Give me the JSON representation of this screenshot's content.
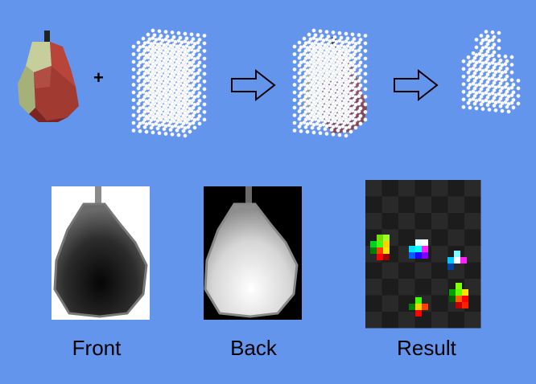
{
  "symbols": {
    "plus": "+"
  },
  "captions": {
    "front": "Front",
    "back": "Back",
    "result": "Result"
  },
  "colors": {
    "background": "#6495ED",
    "pear_red": "#a83a32",
    "pear_green": "#b9c78f",
    "voxel": "#ffffff",
    "arrow_fill": "#6495ED",
    "arrow_stroke": "#000000"
  },
  "icons": [
    "pear-model",
    "voxel-grid",
    "right-arrow",
    "voxelized-pear",
    "depth-map",
    "result-map"
  ]
}
